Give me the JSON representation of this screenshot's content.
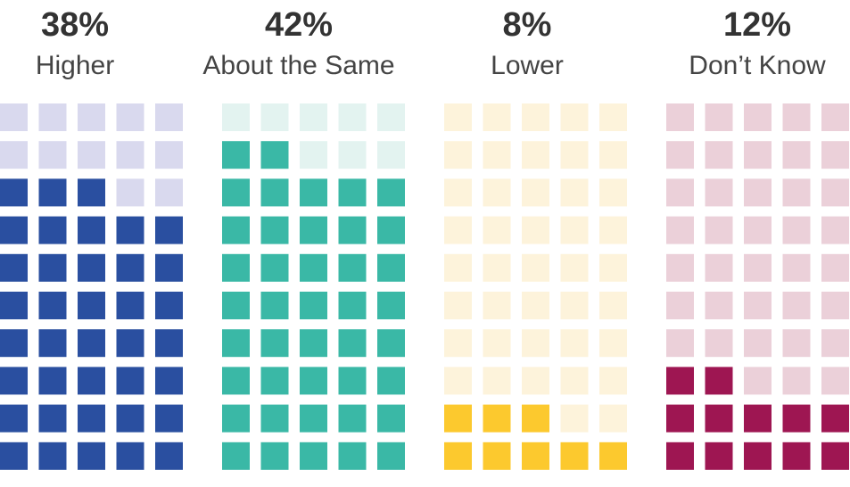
{
  "chart_data": {
    "type": "waffle",
    "total_cells_per_group": 50,
    "rows": 10,
    "columns": 5,
    "groups": [
      {
        "percent_label": "38%",
        "category_label": "Higher",
        "value": 38,
        "filled_color": "#2a4fa0",
        "empty_color": "#d9d9ee"
      },
      {
        "percent_label": "42%",
        "category_label": "About the Same",
        "value": 42,
        "filled_color": "#3ab8a6",
        "empty_color": "#e3f3f0"
      },
      {
        "percent_label": "8%",
        "category_label": "Lower",
        "value": 8,
        "filled_color": "#fcc92e",
        "empty_color": "#fdf3db"
      },
      {
        "percent_label": "12%",
        "category_label": "Don’t Know",
        "value": 12,
        "filled_color": "#9e1652",
        "empty_color": "#ebd0d9"
      }
    ]
  }
}
